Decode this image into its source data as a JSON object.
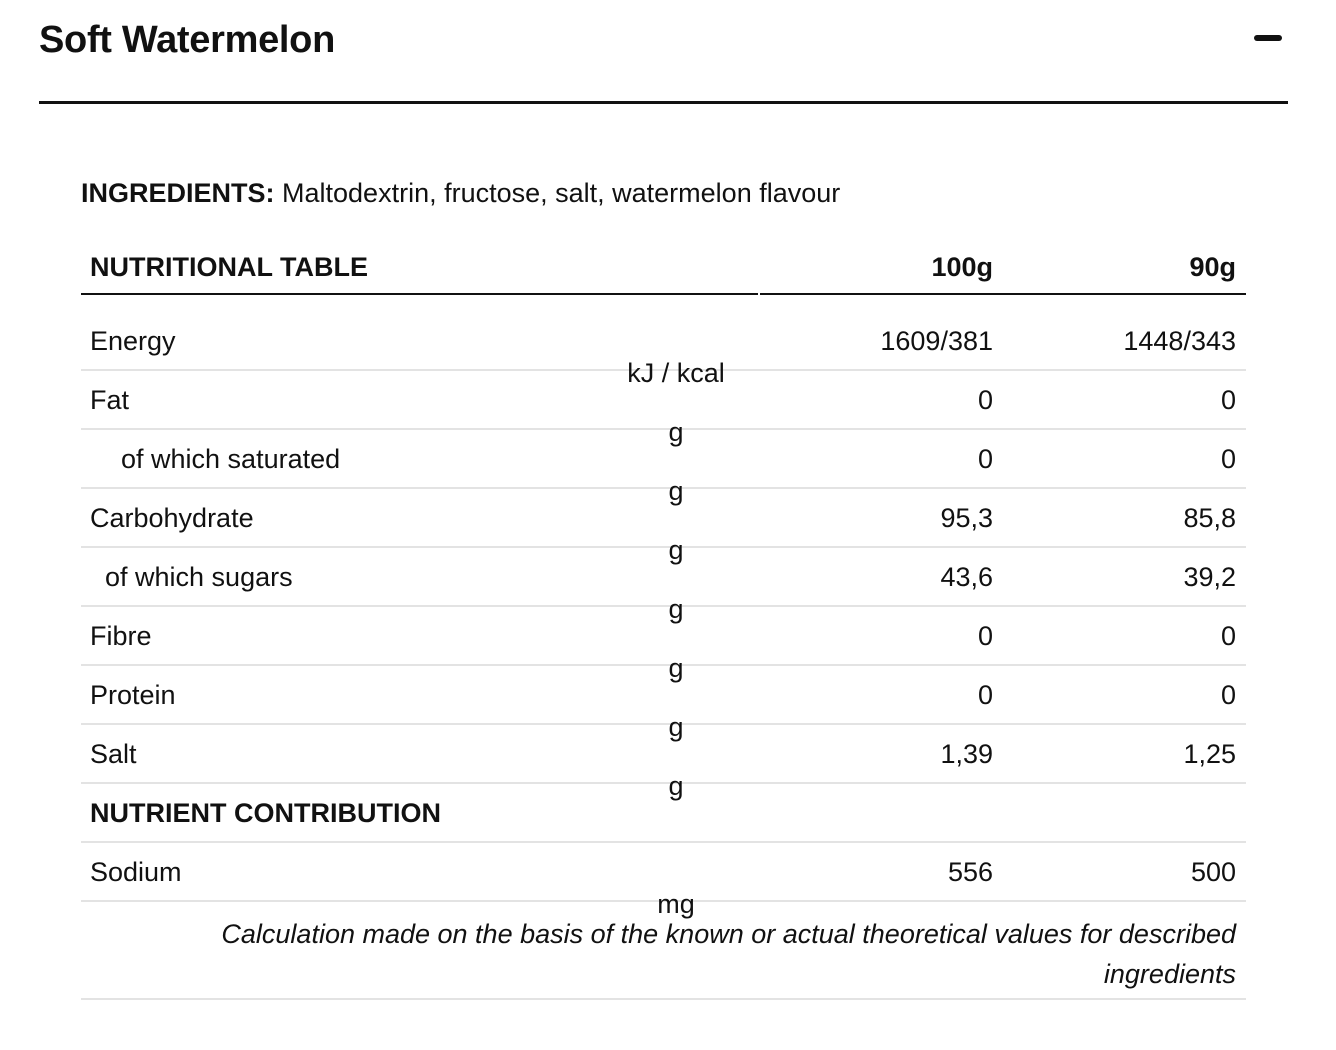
{
  "header": {
    "title": "Soft Watermelon",
    "toggle_icon": "minus-icon"
  },
  "ingredients": {
    "label": "INGREDIENTS:",
    "text": " Maltodextrin, fructose, salt, watermelon flavour"
  },
  "table": {
    "header": {
      "title": "NUTRITIONAL TABLE",
      "col_100": "100g",
      "col_90": "90g"
    },
    "rows": [
      {
        "name": "Energy",
        "unit": "kJ / kcal",
        "per100": "1609/381",
        "per90": "1448/343"
      },
      {
        "name": "Fat",
        "unit": "g",
        "per100": "0",
        "per90": "0"
      },
      {
        "name": "of which saturated",
        "unit": "g",
        "per100": "0",
        "per90": "0"
      },
      {
        "name": "Carbohydrate",
        "unit": "g",
        "per100": "95,3",
        "per90": "85,8"
      },
      {
        "name": "of which sugars",
        "unit": "g",
        "per100": "43,6",
        "per90": "39,2"
      },
      {
        "name": "Fibre",
        "unit": "g",
        "per100": "0",
        "per90": "0"
      },
      {
        "name": "Protein",
        "unit": "g",
        "per100": "0",
        "per90": "0"
      },
      {
        "name": "Salt",
        "unit": "g",
        "per100": "1,39",
        "per90": "1,25"
      }
    ],
    "section_title": "NUTRIENT CONTRIBUTION",
    "section_rows": [
      {
        "name": "Sodium",
        "unit": "mg",
        "per100": "556",
        "per90": "500"
      }
    ],
    "note": "Calculation made on the basis of the known or actual theoretical values for described ingredients"
  }
}
